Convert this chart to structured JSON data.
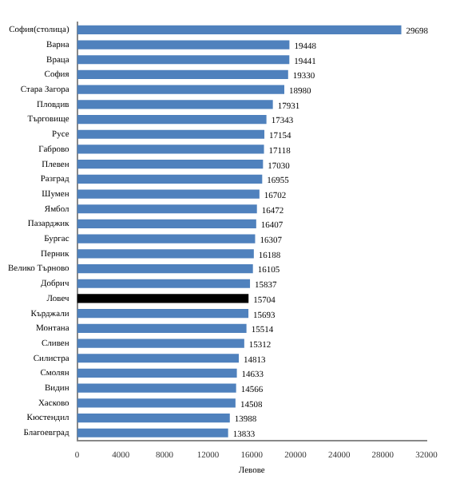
{
  "chart_data": {
    "type": "bar",
    "orientation": "horizontal",
    "xlabel": "Левове",
    "categories": [
      "София(столица)",
      "Варна",
      "Враца",
      "София",
      "Стара Загора",
      "Пловдив",
      "Търговище",
      "Русе",
      "Габрово",
      "Плевен",
      "Разград",
      "Шумен",
      "Ямбол",
      "Пазарджик",
      "Бургас",
      "Перник",
      "Велико Търново",
      "Добрич",
      "Ловеч",
      "Кърджали",
      "Монтана",
      "Сливен",
      "Силистра",
      "Смолян",
      "Видин",
      "Хасково",
      "Кюстендил",
      "Благоевград"
    ],
    "values": [
      29698,
      19448,
      19441,
      19330,
      18980,
      17931,
      17343,
      17154,
      17118,
      17030,
      16955,
      16702,
      16472,
      16407,
      16307,
      16188,
      16105,
      15837,
      15704,
      15693,
      15514,
      15312,
      14813,
      14633,
      14566,
      14508,
      13988,
      13833
    ],
    "colors": [
      "#4f81bd",
      "#4f81bd",
      "#4f81bd",
      "#4f81bd",
      "#4f81bd",
      "#4f81bd",
      "#4f81bd",
      "#4f81bd",
      "#4f81bd",
      "#4f81bd",
      "#4f81bd",
      "#4f81bd",
      "#4f81bd",
      "#4f81bd",
      "#4f81bd",
      "#4f81bd",
      "#4f81bd",
      "#4f81bd",
      "#000000",
      "#4f81bd",
      "#4f81bd",
      "#4f81bd",
      "#4f81bd",
      "#4f81bd",
      "#4f81bd",
      "#4f81bd",
      "#4f81bd",
      "#4f81bd"
    ],
    "xlim": [
      0,
      32000
    ],
    "xticks": [
      0,
      4000,
      8000,
      12000,
      16000,
      20000,
      24000,
      28000,
      32000
    ],
    "data_labels": true,
    "grid": false,
    "legend": false
  }
}
